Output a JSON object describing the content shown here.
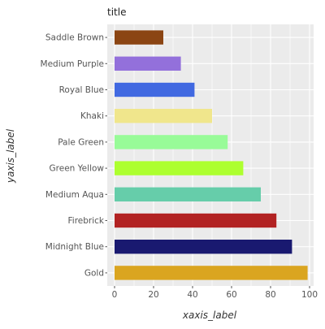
{
  "chart_data": {
    "type": "bar",
    "orientation": "horizontal",
    "title": "title",
    "xlabel": "xaxis_label",
    "ylabel": "yaxis_label",
    "categories": [
      "Saddle Brown",
      "Medium Purple",
      "Royal Blue",
      "Khaki",
      "Pale Green",
      "Green Yellow",
      "Medium Aqua",
      "Firebrick",
      "Midnight Blue",
      "Gold"
    ],
    "values": [
      25,
      34,
      41,
      50,
      58,
      66,
      75,
      83,
      91,
      99
    ],
    "colors": [
      "#8b4513",
      "#9370db",
      "#4169e1",
      "#f0e68c",
      "#98fb98",
      "#adff2f",
      "#66cdaa",
      "#b22222",
      "#191970",
      "#daa520"
    ],
    "xlim": [
      0,
      100
    ],
    "xticks": [
      0,
      20,
      40,
      60,
      80,
      100
    ],
    "grid": true,
    "background": "#ebebeb",
    "grid_color": "#ffffff"
  }
}
